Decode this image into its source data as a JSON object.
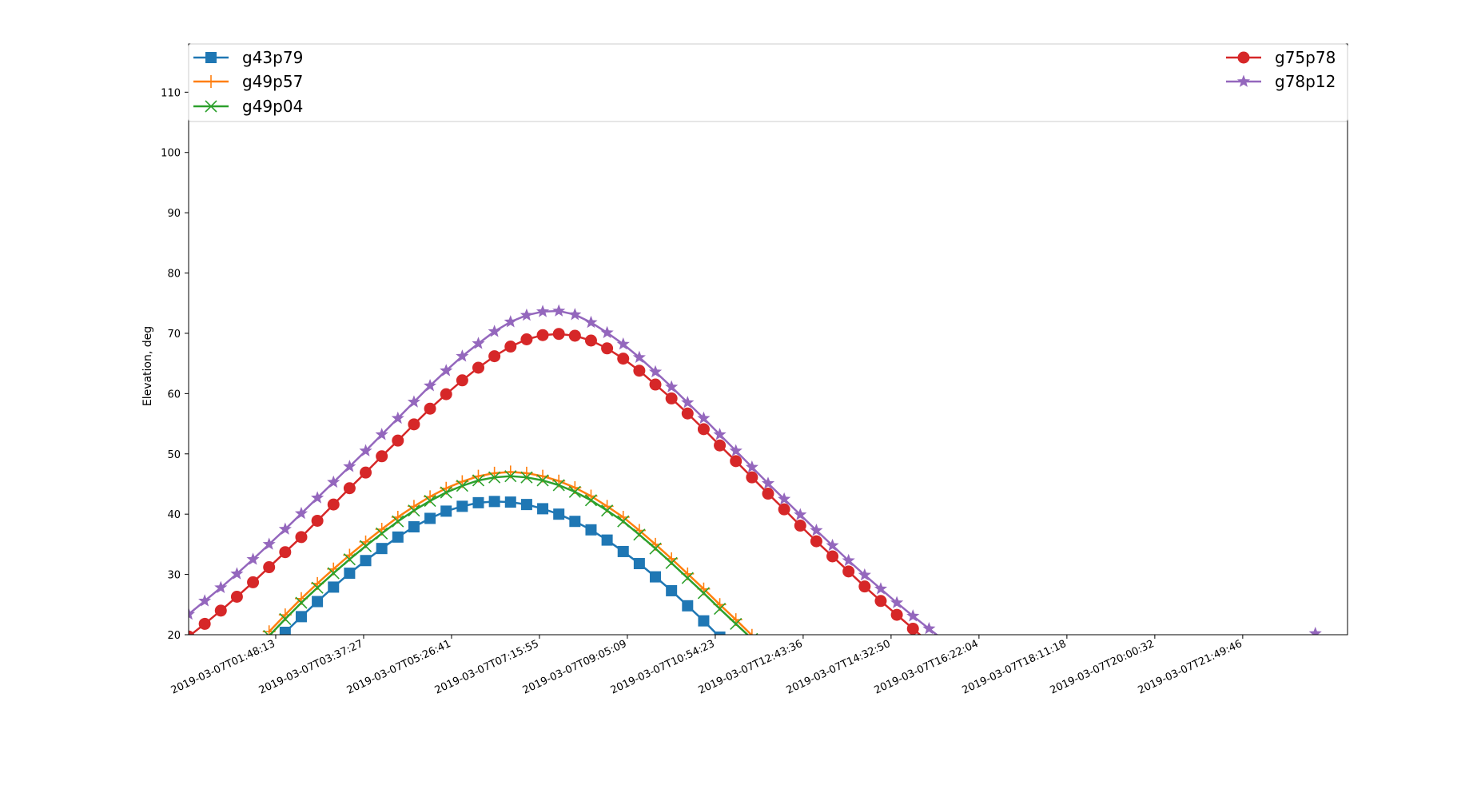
{
  "chart_data": {
    "type": "line",
    "title": "",
    "xlabel": "",
    "ylabel": "Elevation, deg",
    "ylim": [
      20,
      118
    ],
    "xlim": [
      "2019-03-07T00:00:00",
      "2019-03-08T00:00:00"
    ],
    "y_ticks": [
      "20",
      "30",
      "40",
      "50",
      "60",
      "70",
      "80",
      "90",
      "100",
      "110"
    ],
    "x_ticks": [
      "2019-03-07T01:48:13",
      "2019-03-07T03:37:27",
      "2019-03-07T05:26:41",
      "2019-03-07T07:15:55",
      "2019-03-07T09:05:09",
      "2019-03-07T10:54:23",
      "2019-03-07T12:43:36",
      "2019-03-07T14:32:50",
      "2019-03-07T16:22:04",
      "2019-03-07T18:11:18",
      "2019-03-07T20:00:32",
      "2019-03-07T21:49:46"
    ],
    "grid": false,
    "legend": {
      "placement": "top, split left/right",
      "left": [
        "g43p79",
        "g49p57",
        "g49p04"
      ],
      "right": [
        "g75p78",
        "g78p12"
      ]
    },
    "series": [
      {
        "name": "g43p79",
        "color": "#1f77b4",
        "marker": "square",
        "start_time": "2019-03-07T01:40:00",
        "step_minutes": 20,
        "values": [
          16.8,
          20.4,
          23.0,
          25.5,
          27.9,
          30.2,
          32.3,
          34.3,
          36.2,
          37.9,
          39.3,
          40.5,
          41.3,
          41.9,
          42.1,
          42.0,
          41.6,
          40.9,
          40.0,
          38.8,
          37.4,
          35.7,
          33.8,
          31.8,
          29.6,
          27.3,
          24.8,
          22.3,
          19.6
        ]
      },
      {
        "name": "g49p57",
        "color": "#ff7f0e",
        "marker": "plus",
        "start_time": "2019-03-07T01:40:00",
        "step_minutes": 20,
        "values": [
          20.5,
          23.3,
          26.0,
          28.5,
          30.9,
          33.2,
          35.4,
          37.5,
          39.5,
          41.3,
          42.9,
          44.3,
          45.4,
          46.3,
          46.8,
          47.0,
          46.8,
          46.3,
          45.5,
          44.4,
          43.0,
          41.3,
          39.5,
          37.3,
          35.0,
          32.6,
          30.1,
          27.6,
          25.0,
          22.5,
          19.9
        ]
      },
      {
        "name": "g49p04",
        "color": "#2ca02c",
        "marker": "x",
        "start_time": "2019-03-07T01:40:00",
        "step_minutes": 20,
        "values": [
          19.8,
          22.6,
          25.3,
          27.8,
          30.2,
          32.5,
          34.7,
          36.8,
          38.8,
          40.6,
          42.2,
          43.6,
          44.7,
          45.6,
          46.1,
          46.3,
          46.1,
          45.6,
          44.8,
          43.7,
          42.3,
          40.6,
          38.8,
          36.6,
          34.3,
          31.9,
          29.4,
          26.9,
          24.3,
          21.8,
          19.3
        ]
      },
      {
        "name": "g75p78",
        "color": "#d62728",
        "marker": "circle",
        "start_time": "2019-03-07T00:00:00",
        "step_minutes": 20,
        "values": [
          19.7,
          21.8,
          24.0,
          26.3,
          28.7,
          31.2,
          33.7,
          36.2,
          38.9,
          41.6,
          44.3,
          46.9,
          49.6,
          52.2,
          54.9,
          57.5,
          59.9,
          62.2,
          64.3,
          66.2,
          67.8,
          69.0,
          69.7,
          69.9,
          69.6,
          68.8,
          67.5,
          65.8,
          63.8,
          61.5,
          59.2,
          56.7,
          54.1,
          51.4,
          48.8,
          46.1,
          43.4,
          40.8,
          38.1,
          35.5,
          33.0,
          30.5,
          28.0,
          25.6,
          23.3,
          21.0,
          18.7
        ]
      },
      {
        "name": "g78p12",
        "color": "#9467bd",
        "marker": "star",
        "start_time": "2019-03-07T00:00:00",
        "step_minutes": 20,
        "values": [
          23.4,
          25.6,
          27.8,
          30.1,
          32.5,
          35.0,
          37.5,
          40.1,
          42.7,
          45.3,
          47.9,
          50.5,
          53.2,
          55.9,
          58.6,
          61.3,
          63.8,
          66.2,
          68.3,
          70.3,
          71.9,
          73.0,
          73.6,
          73.7,
          73.1,
          71.8,
          70.1,
          68.2,
          66.0,
          63.6,
          61.1,
          58.5,
          55.9,
          53.2,
          50.5,
          47.8,
          45.1,
          42.5,
          39.9,
          37.3,
          34.8,
          32.3,
          29.9,
          27.6,
          25.3,
          23.1,
          21.0,
          18.9
        ]
      },
      {
        "name": "g78p12",
        "color": "#9467bd",
        "marker": "star",
        "start_time": "2019-03-07T23:20:00",
        "step_minutes": 20,
        "values": [
          20.2
        ]
      }
    ]
  }
}
